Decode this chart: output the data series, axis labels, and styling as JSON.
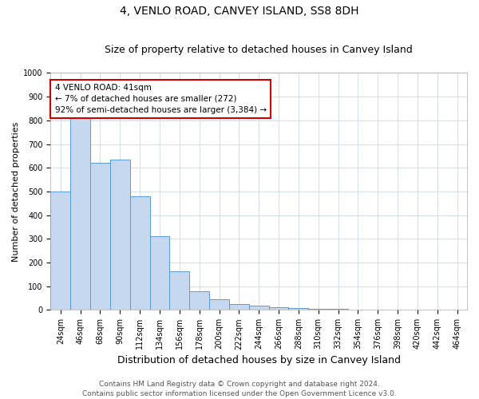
{
  "title": "4, VENLO ROAD, CANVEY ISLAND, SS8 8DH",
  "subtitle": "Size of property relative to detached houses in Canvey Island",
  "xlabel": "Distribution of detached houses by size in Canvey Island",
  "ylabel": "Number of detached properties",
  "categories": [
    "24sqm",
    "46sqm",
    "68sqm",
    "90sqm",
    "112sqm",
    "134sqm",
    "156sqm",
    "178sqm",
    "200sqm",
    "222sqm",
    "244sqm",
    "266sqm",
    "288sqm",
    "310sqm",
    "332sqm",
    "354sqm",
    "376sqm",
    "398sqm",
    "420sqm",
    "442sqm",
    "464sqm"
  ],
  "values": [
    500,
    810,
    620,
    635,
    480,
    310,
    163,
    80,
    45,
    25,
    18,
    12,
    7,
    5,
    3,
    2,
    2,
    2,
    1,
    0,
    0
  ],
  "bar_color": "#c5d8f0",
  "bar_edge_color": "#5b9bd5",
  "annotation_text": "4 VENLO ROAD: 41sqm\n← 7% of detached houses are smaller (272)\n92% of semi-detached houses are larger (3,384) →",
  "annotation_box_color": "#ffffff",
  "annotation_box_edge_color": "#cc0000",
  "footer_line1": "Contains HM Land Registry data © Crown copyright and database right 2024.",
  "footer_line2": "Contains public sector information licensed under the Open Government Licence v3.0.",
  "ylim": [
    0,
    1000
  ],
  "yticks": [
    0,
    100,
    200,
    300,
    400,
    500,
    600,
    700,
    800,
    900,
    1000
  ],
  "background_color": "#ffffff",
  "grid_color": "#d0d8e8",
  "title_fontsize": 10,
  "subtitle_fontsize": 9,
  "xlabel_fontsize": 9,
  "ylabel_fontsize": 8,
  "tick_fontsize": 7,
  "footer_fontsize": 6.5,
  "annot_fontsize": 7.5
}
